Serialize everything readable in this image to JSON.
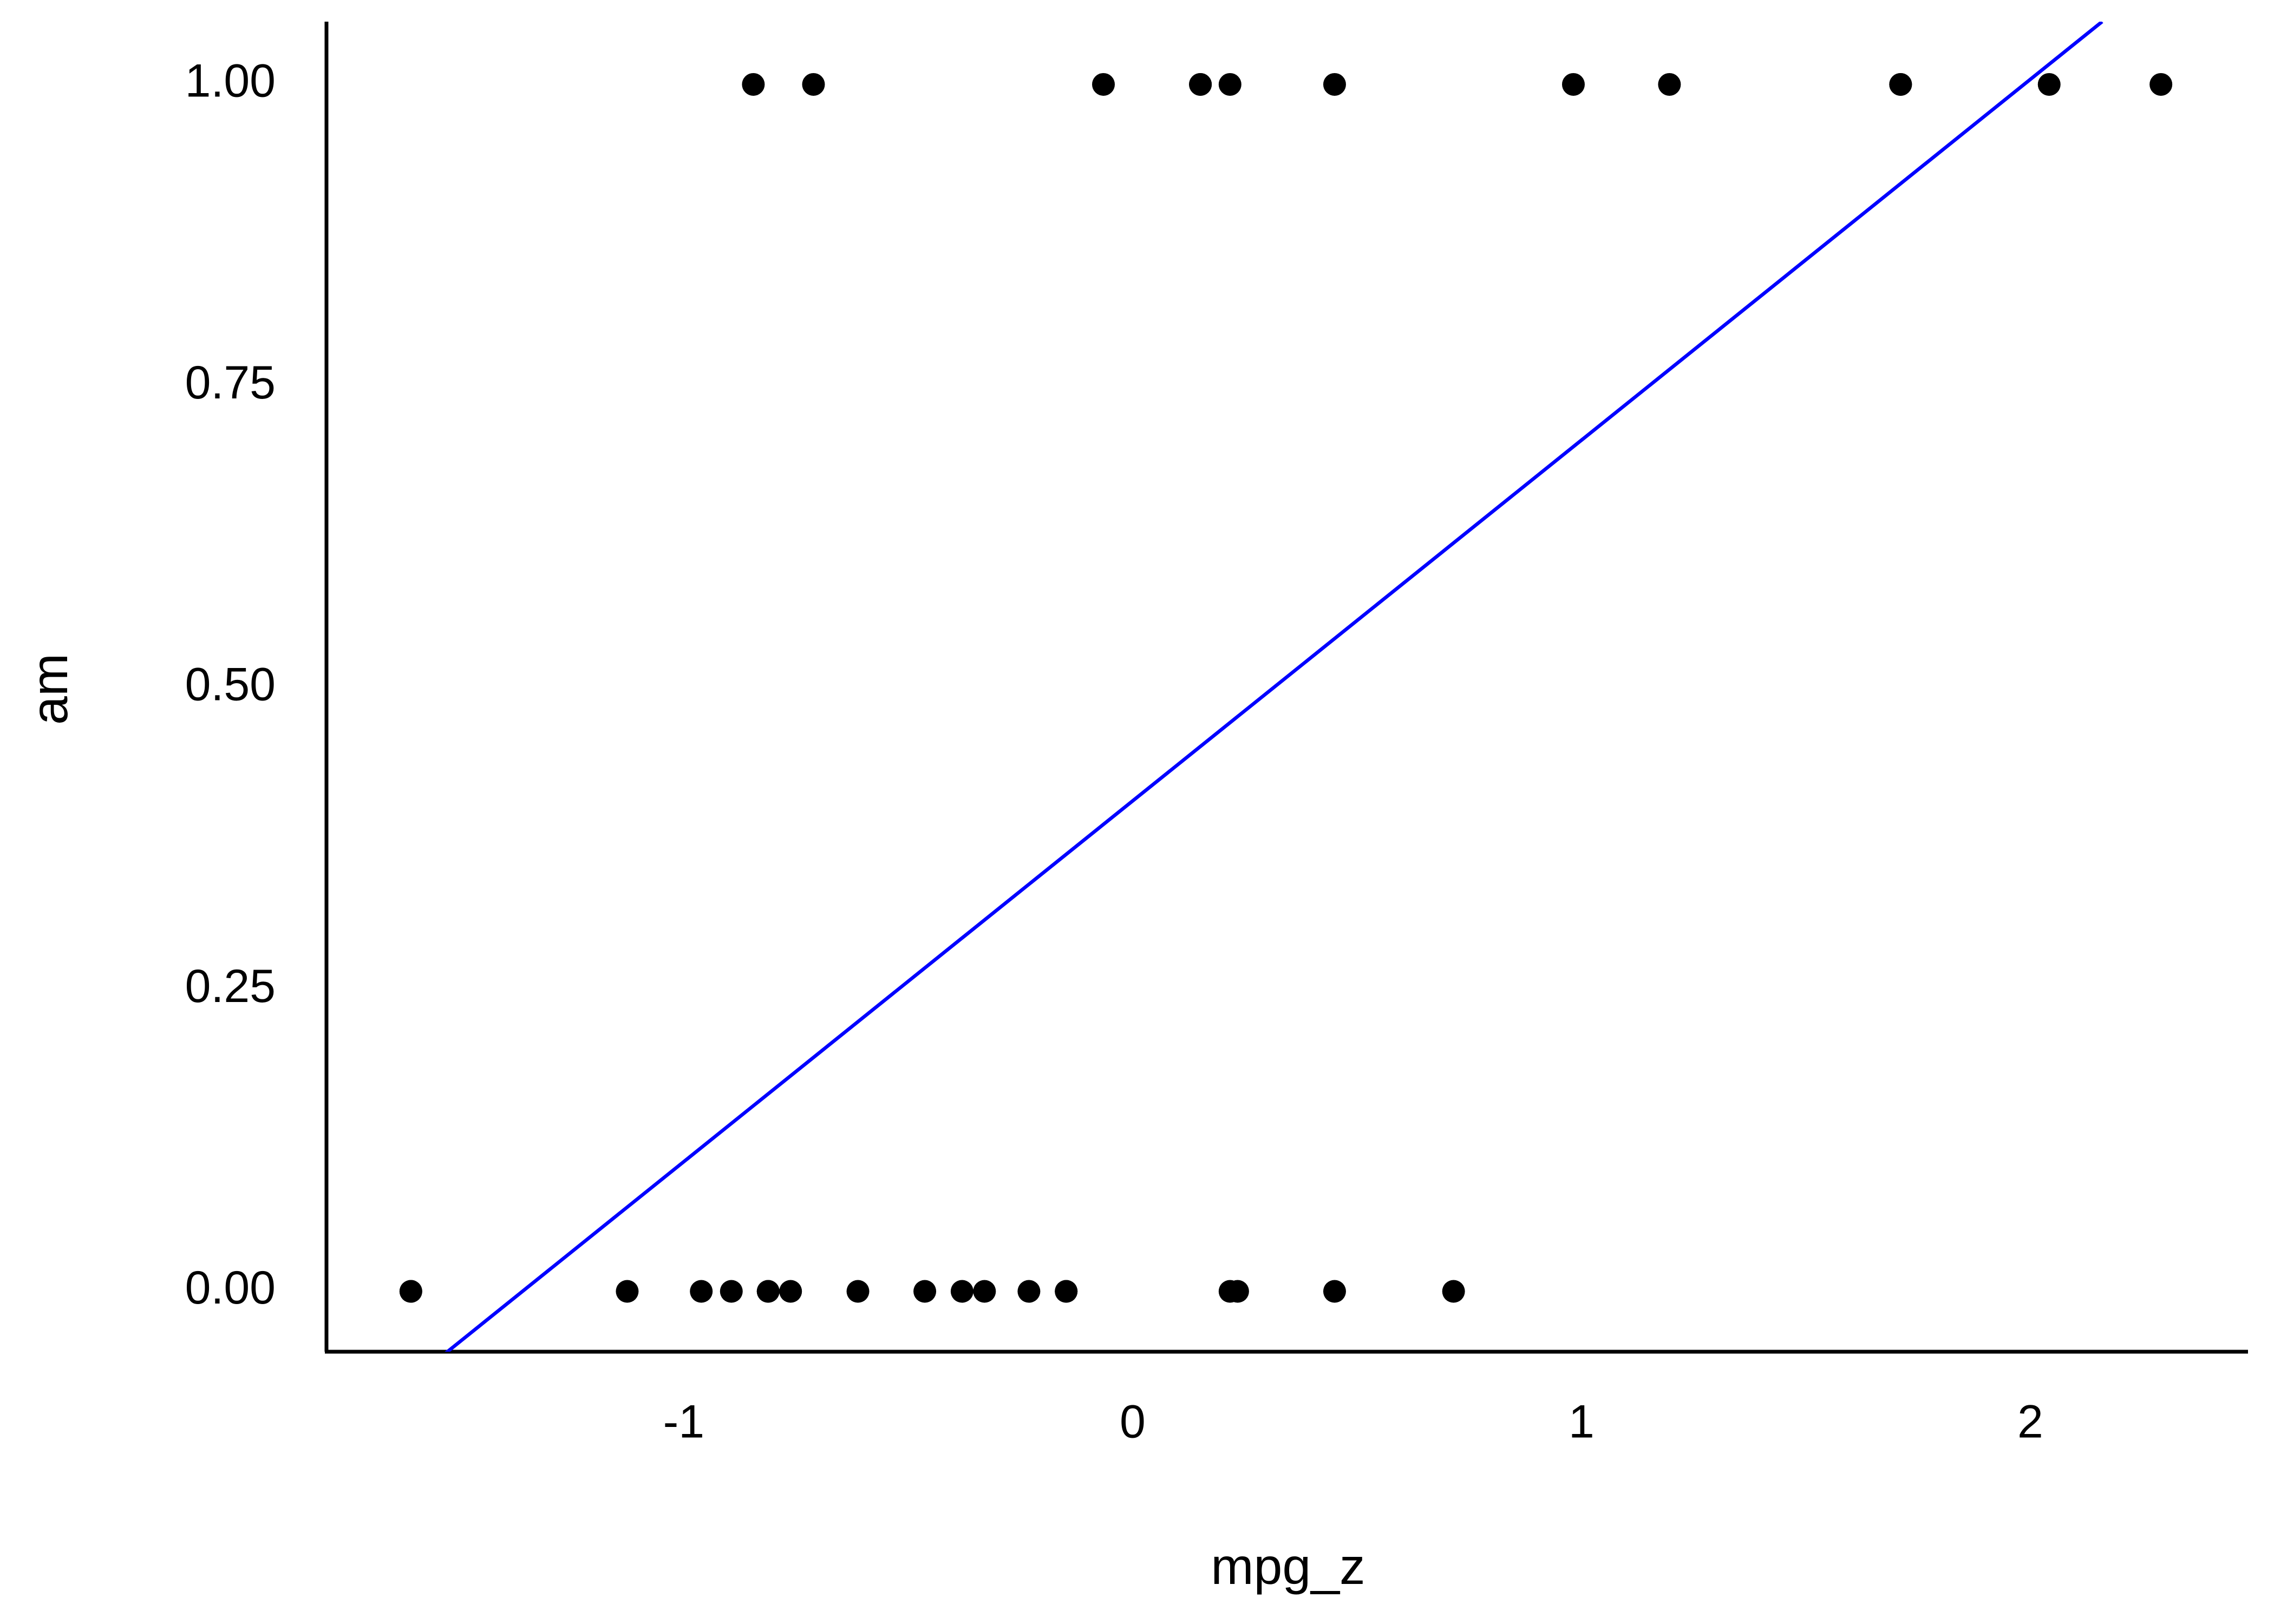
{
  "chart_data": {
    "type": "scatter",
    "x_label": "mpg_z",
    "y_label": "am",
    "points": {
      "color": "#000000",
      "x": [
        0.151,
        0.151,
        0.45,
        2.042,
        1.711,
        2.291,
        1.196,
        0.982,
        1.711,
        -0.711,
        -0.065,
        -0.845,
        0.217,
        0.217,
        -0.231,
        -0.33,
        -0.961,
        0.715,
        0.45,
        -0.148,
        -0.38,
        -0.612,
        -0.463,
        -0.812,
        -1.608,
        -1.608,
        -0.894,
        -0.762,
        -0.812,
        -1.126,
        -0.148,
        0.234
      ],
      "values": [
        1,
        1,
        1,
        1,
        1,
        1,
        1,
        1,
        1,
        1,
        1,
        1,
        1,
        0,
        0,
        0,
        0,
        0,
        0,
        0,
        0,
        0,
        0,
        0,
        0,
        0,
        0,
        0,
        0,
        0,
        0,
        0
      ]
    },
    "fit_line": {
      "color": "#0000ff",
      "x": [
        -1.53,
        2.16
      ],
      "values": [
        -0.051,
        1.052
      ]
    },
    "xlim": [
      -1.796,
      2.485
    ],
    "ylim": [
      -0.05,
      1.052
    ],
    "xticks": [
      -1,
      0,
      1,
      2
    ],
    "yticks": [
      {
        "value": 0,
        "label": "0.00"
      },
      {
        "value": 0.25,
        "label": "0.25"
      },
      {
        "value": 0.5,
        "label": "0.50"
      },
      {
        "value": 0.75,
        "label": "0.75"
      },
      {
        "value": 1,
        "label": "1.00"
      }
    ],
    "grid": false
  }
}
